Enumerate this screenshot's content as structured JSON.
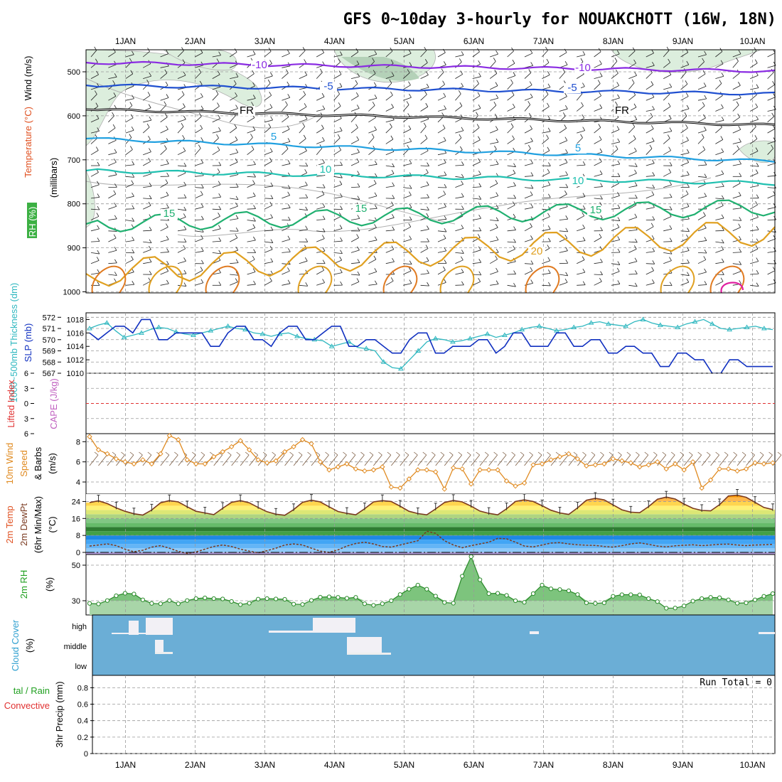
{
  "title": "GFS 0~10day 3-hourly for NOUAKCHOTT (16W, 18N)",
  "dates": [
    "1JAN",
    "2JAN",
    "3JAN",
    "4JAN",
    "5JAN",
    "6JAN",
    "7JAN",
    "8JAN",
    "9JAN",
    "10JAN"
  ],
  "panel_labels": {
    "upper_wind": "Wind (m/s)",
    "upper_temp": "Temperature (°C)",
    "upper_rh": "RH (%)",
    "upper_units": "(millibars)",
    "thickness": "1000~500mb Thickness (dm)",
    "slp": "SLP (mb)",
    "lifted": "Lifted Index",
    "cape": "CAPE (J/kg)",
    "wind10_a": "10m Wind",
    "wind10_b": "Speed",
    "wind10_c": "& Barbs",
    "wind10_units": "(m/s)",
    "temp2m_a": "2m Temp",
    "temp2m_b": "2m DewPt",
    "temp2m_c": "(6hr Min/Max)",
    "temp2m_units": "(°C)",
    "rh2m": "2m RH",
    "rh2m_units": "(%)",
    "cloud": "Cloud Cover",
    "cloud_units": "(%)",
    "precip_a": "tal / Rain",
    "precip_b": "Convective",
    "precip_units": "3hr Precip (mm)",
    "run_total": "Run Total = 0"
  },
  "colors": {
    "wind_label": "#000000",
    "temp_label": "#e05020",
    "rh_label": "#20c020",
    "thick": "#30b8c0",
    "slp": "#1030c0",
    "lifted": "#e03030",
    "cape": "#c060c0",
    "wind10": "#e08a20",
    "green": "#20a020",
    "cloud": "#6baed6",
    "cloud_label": "#30a0d0"
  },
  "chart_data": [
    {
      "type": "contour",
      "panel": "upper_air",
      "y_axis": {
        "label": "millibars",
        "ticks": [
          "500",
          "600",
          "700",
          "800",
          "900",
          "1000"
        ]
      },
      "isotherms": [
        {
          "label": "-10",
          "color": "#8a2be2"
        },
        {
          "label": "-5",
          "color": "#2050d0"
        },
        {
          "label": "FR",
          "color": "#000000"
        },
        {
          "label": "5",
          "color": "#20a0e0"
        },
        {
          "label": "10",
          "color": "#20c0b0"
        },
        {
          "label": "15",
          "color": "#20b070"
        },
        {
          "label": "20",
          "color": "#e0a020"
        }
      ],
      "rh_contours": [
        "10",
        "30",
        "50"
      ]
    },
    {
      "type": "line",
      "panel": "thickness_slp",
      "left_axis": {
        "label": "1000~500mb Thickness (dm)",
        "ticks": [
          "567",
          "568",
          "569",
          "570",
          "571",
          "572"
        ],
        "ylim": [
          567,
          572.4
        ]
      },
      "right_axis": {
        "label": "SLP (mb)",
        "ticks": [
          "1010",
          "1012",
          "1014",
          "1016",
          "1018"
        ],
        "ylim": [
          1010,
          1019
        ]
      },
      "series": [
        {
          "name": "Thickness",
          "values": [
            571.0,
            571.3,
            571.5,
            570.8,
            570.2,
            570.4,
            570.6,
            570.9,
            571.1,
            571.0,
            570.7,
            570.5,
            570.4,
            570.6,
            570.8,
            571.0,
            571.2,
            571.0,
            570.9,
            570.6,
            570.5,
            570.3,
            570.5,
            570.6,
            570.3,
            570.1,
            570.0,
            569.9,
            569.4,
            569.6,
            569.8,
            569.3,
            569.2,
            569.0,
            568.0,
            567.5,
            567.4,
            568.2,
            569.0,
            569.8,
            570.1,
            570.0,
            569.8,
            569.9,
            570.1,
            570.3,
            570.5,
            570.2,
            570.4,
            570.6,
            570.9,
            571.1,
            571.2,
            571.0,
            570.8,
            570.9,
            571.1,
            571.2,
            571.5,
            571.6,
            571.4,
            571.3,
            571.2,
            571.6,
            571.8,
            571.5,
            571.3,
            571.2,
            571.1,
            571.4,
            571.6,
            571.8,
            571.4,
            571.0,
            570.9,
            571.0,
            571.1,
            571.2,
            571.0,
            570.9
          ]
        },
        {
          "name": "SLP",
          "values": [
            1016,
            1015,
            1016,
            1017,
            1017,
            1016,
            1018,
            1018,
            1015,
            1015,
            1016,
            1016,
            1016,
            1016,
            1014,
            1014,
            1016,
            1017,
            1017,
            1015,
            1015,
            1014,
            1016,
            1017,
            1017,
            1015,
            1015,
            1016,
            1017,
            1017,
            1014,
            1014,
            1015,
            1015,
            1014,
            1013,
            1013,
            1015,
            1016,
            1016,
            1013,
            1013,
            1014,
            1014,
            1014,
            1015,
            1015,
            1013,
            1014,
            1016,
            1016,
            1014,
            1014,
            1014,
            1016,
            1016,
            1014,
            1014,
            1015,
            1015,
            1013,
            1013,
            1014,
            1014,
            1013,
            1013,
            1011,
            1011,
            1013,
            1013,
            1012,
            1012,
            1010,
            1010,
            1012,
            1012,
            1011,
            1011,
            1011,
            1011
          ]
        }
      ]
    },
    {
      "type": "line",
      "panel": "stability",
      "left_axis": {
        "label": "Lifted Index",
        "ticks": [
          "-6",
          "-3",
          "0",
          "3",
          "6"
        ],
        "ylim": [
          -6,
          6
        ]
      },
      "series": [
        {
          "name": "Lifted Index",
          "values": [
            0
          ]
        }
      ]
    },
    {
      "type": "line",
      "panel": "wind10m",
      "axis": {
        "label": "(m/s)",
        "ticks": [
          "4",
          "6",
          "8"
        ],
        "ylim": [
          2.8,
          8.8
        ]
      },
      "series": [
        {
          "name": "10m Wind Speed",
          "values": [
            8.5,
            7.2,
            6.8,
            6.3,
            6.0,
            5.8,
            6.2,
            5.8,
            6.8,
            8.6,
            8.2,
            6.2,
            5.8,
            5.8,
            6.5,
            7.0,
            7.5,
            8.1,
            7.2,
            6.2,
            5.9,
            6.1,
            7.0,
            7.5,
            8.2,
            7.8,
            6.0,
            5.2,
            5.5,
            5.8,
            5.3,
            5.1,
            5.2,
            5.5,
            3.5,
            3.4,
            4.3,
            5.2,
            5.2,
            5.0,
            3.3,
            5.4,
            5.3,
            3.8,
            5.2,
            5.2,
            5.2,
            4.1,
            3.6,
            3.9,
            5.7,
            5.8,
            6.2,
            6.5,
            6.8,
            6.3,
            5.6,
            5.7,
            5.8,
            6.3,
            6.1,
            5.9,
            5.5,
            5.7,
            6.0,
            5.3,
            5.8,
            5.2,
            6.0,
            3.4,
            4.2,
            5.3,
            5.3,
            5.1,
            5.3,
            5.9,
            5.8,
            5.9
          ]
        }
      ]
    },
    {
      "type": "area",
      "panel": "temperature",
      "axis": {
        "label": "(°C)",
        "ticks": [
          "0",
          "8",
          "16",
          "24"
        ],
        "ylim": [
          -1,
          27.5
        ]
      },
      "series": [
        {
          "name": "2m Temp",
          "values": [
            23.5,
            24.3,
            23.0,
            21.0,
            19.4,
            18.2,
            17.6,
            20.0,
            23.4,
            24.4,
            23.8,
            21.5,
            19.4,
            18.6,
            17.8,
            20.8,
            23.6,
            24.4,
            23.4,
            21.2,
            19.2,
            18.0,
            17.5,
            20.2,
            23.6,
            24.6,
            23.8,
            21.5,
            19.3,
            18.4,
            17.7,
            20.6,
            23.8,
            24.4,
            24.0,
            21.8,
            19.4,
            18.3,
            17.7,
            20.5,
            23.5,
            24.5,
            23.8,
            21.8,
            19.5,
            18.4,
            17.7,
            20.6,
            24.0,
            24.8,
            24.0,
            22.0,
            19.9,
            18.6,
            17.9,
            21.0,
            24.6,
            25.5,
            24.8,
            22.4,
            20.1,
            19.0,
            18.7,
            21.6,
            25.1,
            26.1,
            25.2,
            22.8,
            20.8,
            19.8,
            19.6,
            22.5,
            26.6,
            27.0,
            26.0,
            23.6,
            21.2,
            20.2
          ]
        },
        {
          "name": "2m DewPt",
          "values": [
            3.0,
            3.5,
            4.0,
            3.2,
            1.5,
            0.3,
            1.0,
            2.5,
            3.2,
            2.0,
            0.5,
            -0.5,
            0.2,
            1.5,
            2.8,
            3.5,
            2.8,
            1.5,
            0.6,
            -0.2,
            0.8,
            2.0,
            3.5,
            4.0,
            3.5,
            2.0,
            0.6,
            0.0,
            1.2,
            3.0,
            4.2,
            4.8,
            4.0,
            2.8,
            2.5,
            3.5,
            4.5,
            5.5,
            10.0,
            9.0,
            5.5,
            3.5,
            2.2,
            3.2,
            4.0,
            4.8,
            6.6,
            6.4,
            4.8,
            3.0,
            2.6,
            3.5,
            4.4,
            4.6,
            4.0,
            3.6,
            3.4,
            3.3,
            2.8,
            2.5,
            3.2,
            4.0,
            4.5,
            3.8,
            3.0,
            2.6,
            3.1,
            3.4,
            3.6,
            3.2,
            3.5,
            3.8,
            3.9,
            3.5,
            3.2,
            3.5,
            3.6,
            3.8
          ]
        }
      ]
    },
    {
      "type": "area",
      "panel": "rh2m",
      "axis": {
        "label": "(%)",
        "ticks": [
          "30",
          "50"
        ],
        "ylim": [
          22,
          56
        ]
      },
      "series": [
        {
          "name": "2m RH",
          "values": [
            28.5,
            28.2,
            30.1,
            32.8,
            34.2,
            33.8,
            30.5,
            28.5,
            28.3,
            30.1,
            28.3,
            30.1,
            31.2,
            31.6,
            31.2,
            31.0,
            29.6,
            27.8,
            28.6,
            30.9,
            31.2,
            31.0,
            30.8,
            28.1,
            27.9,
            30.2,
            32.0,
            32.2,
            31.9,
            31.4,
            31.9,
            28.3,
            27.4,
            28.3,
            30.0,
            33.5,
            36.5,
            38.8,
            36.5,
            32.6,
            29.0,
            28.6,
            43.8,
            54.8,
            41.8,
            34.0,
            34.2,
            33.0,
            30.0,
            29.1,
            34.0,
            38.8,
            36.7,
            36.3,
            35.6,
            33.5,
            28.8,
            28.5,
            28.8,
            32.5,
            33.4,
            33.4,
            33.3,
            31.2,
            29.5,
            25.8,
            25.9,
            27.1,
            29.8,
            31.2,
            31.9,
            31.7,
            30.5,
            28.6,
            28.8,
            30.5,
            32.5,
            34.0
          ]
        }
      ]
    },
    {
      "type": "heatmap",
      "panel": "cloud_cover",
      "rows": [
        "high",
        "middle",
        "low"
      ]
    },
    {
      "type": "bar",
      "panel": "precip",
      "axis": {
        "label": "3hr Precip (mm)",
        "ticks": [
          "0",
          "0.2",
          "0.4",
          "0.6",
          "0.8"
        ],
        "ylim": [
          0,
          0.95
        ]
      },
      "series": [
        {
          "name": "Total / Rain",
          "values": [
            0
          ]
        },
        {
          "name": "Convective",
          "values": [
            0
          ]
        }
      ]
    }
  ]
}
